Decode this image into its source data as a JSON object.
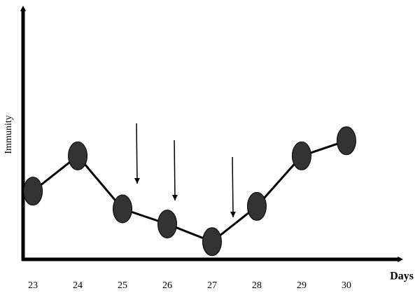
{
  "chart_data": {
    "type": "line",
    "x_label": "Days",
    "y_label": "Immunity",
    "x": [
      23,
      24,
      25,
      26,
      27,
      28,
      29,
      30
    ],
    "values": [
      27,
      41,
      20,
      14,
      7,
      21,
      41,
      47
    ],
    "color": "#333333",
    "xlim": [
      22.78,
      31.3
    ],
    "xticks": [
      23,
      24,
      25,
      26,
      27,
      28,
      29,
      30
    ],
    "ylim": [
      0,
      100
    ]
  }
}
